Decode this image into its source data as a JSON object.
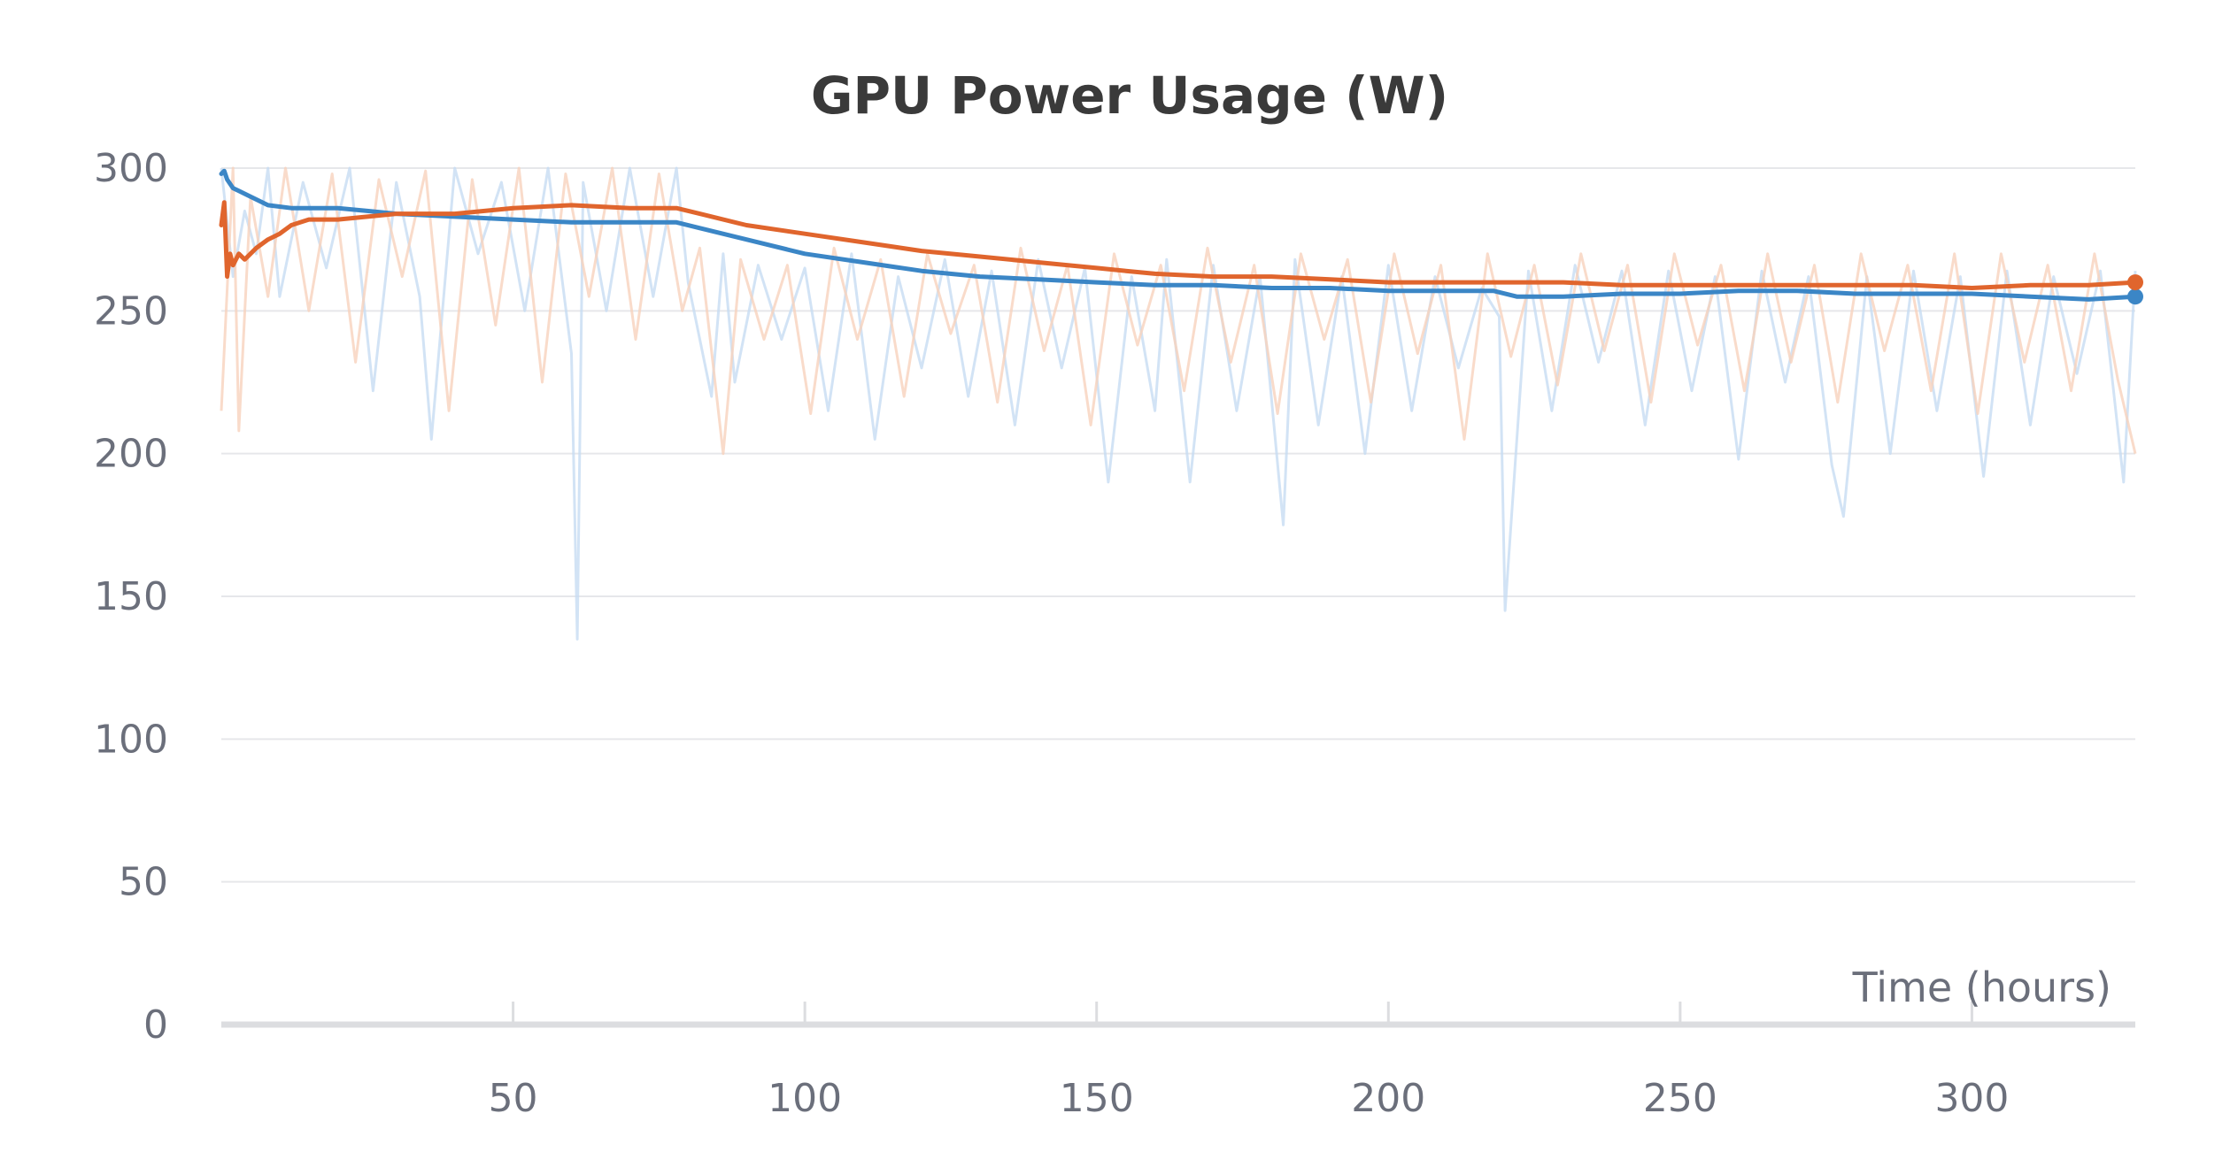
{
  "chart_data": {
    "type": "line",
    "title": "GPU Power Usage (W)",
    "xlabel": "Time (hours)",
    "ylabel": "",
    "xlim": [
      0,
      328
    ],
    "ylim": [
      0,
      300
    ],
    "x_ticks": [
      50,
      100,
      150,
      200,
      250,
      300
    ],
    "y_ticks": [
      0,
      50,
      100,
      150,
      200,
      250,
      300
    ],
    "grid": "horizontal",
    "legend": "none",
    "series": [
      {
        "color": "#3b86c6",
        "raw_color": "#c7dcf3",
        "smoothed": {
          "x": [
            0,
            0.5,
            1,
            2,
            3,
            5,
            8,
            12,
            16,
            20,
            25,
            30,
            40,
            50,
            60,
            70,
            78,
            82,
            90,
            100,
            110,
            120,
            130,
            140,
            150,
            160,
            170,
            180,
            190,
            200,
            210,
            218,
            222,
            230,
            240,
            250,
            260,
            270,
            280,
            290,
            300,
            310,
            320,
            328
          ],
          "y": [
            298,
            299,
            296,
            293,
            292,
            290,
            287,
            286,
            286,
            286,
            285,
            284,
            283,
            282,
            281,
            281,
            281,
            279,
            275,
            270,
            267,
            264,
            262,
            261,
            260,
            259,
            259,
            258,
            258,
            257,
            257,
            257,
            255,
            255,
            256,
            256,
            257,
            257,
            256,
            256,
            256,
            255,
            254,
            255
          ]
        },
        "raw": {
          "x": [
            0,
            2,
            4,
            6,
            8,
            10,
            14,
            18,
            22,
            26,
            30,
            34,
            36,
            40,
            44,
            48,
            52,
            56,
            60,
            61,
            62,
            66,
            70,
            74,
            78,
            80,
            84,
            86,
            88,
            92,
            96,
            100,
            104,
            108,
            112,
            116,
            120,
            124,
            128,
            132,
            136,
            140,
            144,
            148,
            152,
            156,
            160,
            162,
            166,
            170,
            174,
            178,
            182,
            184,
            188,
            192,
            196,
            200,
            204,
            208,
            212,
            216,
            219,
            220,
            224,
            228,
            232,
            236,
            240,
            244,
            248,
            252,
            256,
            260,
            264,
            268,
            272,
            276,
            278,
            282,
            286,
            290,
            294,
            298,
            302,
            306,
            310,
            314,
            318,
            322,
            326,
            328
          ],
          "y": [
            300,
            262,
            285,
            270,
            300,
            255,
            295,
            265,
            300,
            222,
            295,
            255,
            205,
            300,
            270,
            295,
            250,
            300,
            235,
            135,
            295,
            250,
            300,
            255,
            300,
            260,
            220,
            270,
            225,
            266,
            240,
            265,
            215,
            270,
            205,
            262,
            230,
            268,
            220,
            264,
            210,
            268,
            230,
            265,
            190,
            262,
            215,
            268,
            190,
            266,
            215,
            262,
            175,
            268,
            210,
            262,
            200,
            266,
            215,
            262,
            230,
            258,
            248,
            145,
            264,
            215,
            266,
            232,
            264,
            210,
            264,
            222,
            262,
            198,
            264,
            225,
            262,
            196,
            178,
            262,
            200,
            264,
            215,
            262,
            192,
            264,
            210,
            262,
            228,
            264,
            190,
            264
          ]
        }
      },
      {
        "color": "#e0652d",
        "raw_color": "#f8d2bd",
        "smoothed": {
          "x": [
            0,
            0.5,
            1,
            1.5,
            2,
            3,
            4,
            6,
            8,
            10,
            12,
            15,
            20,
            25,
            30,
            40,
            50,
            60,
            70,
            78,
            82,
            90,
            100,
            110,
            120,
            130,
            140,
            150,
            155,
            160,
            170,
            180,
            190,
            200,
            210,
            220,
            230,
            240,
            250,
            260,
            270,
            280,
            290,
            300,
            310,
            320,
            328
          ],
          "y": [
            280,
            288,
            262,
            270,
            266,
            270,
            268,
            272,
            275,
            277,
            280,
            282,
            282,
            283,
            284,
            284,
            286,
            287,
            286,
            286,
            284,
            280,
            277,
            274,
            271,
            269,
            267,
            265,
            264,
            263,
            262,
            262,
            261,
            260,
            260,
            260,
            260,
            259,
            259,
            259,
            259,
            259,
            259,
            258,
            259,
            259,
            260
          ]
        },
        "raw": {
          "x": [
            0,
            2,
            3,
            5,
            8,
            11,
            15,
            19,
            23,
            27,
            31,
            35,
            39,
            43,
            47,
            51,
            55,
            59,
            63,
            67,
            71,
            75,
            79,
            82,
            86,
            89,
            93,
            97,
            101,
            105,
            109,
            113,
            117,
            121,
            125,
            129,
            133,
            137,
            141,
            145,
            149,
            153,
            157,
            161,
            165,
            169,
            173,
            177,
            181,
            185,
            189,
            193,
            197,
            201,
            205,
            209,
            213,
            217,
            221,
            225,
            229,
            233,
            237,
            241,
            245,
            249,
            253,
            257,
            261,
            265,
            269,
            273,
            277,
            281,
            285,
            289,
            293,
            297,
            301,
            305,
            309,
            313,
            317,
            321,
            325,
            328
          ],
          "y": [
            215,
            300,
            208,
            290,
            255,
            300,
            250,
            298,
            232,
            296,
            262,
            299,
            215,
            296,
            245,
            300,
            225,
            298,
            255,
            300,
            240,
            298,
            250,
            272,
            200,
            268,
            240,
            266,
            214,
            272,
            240,
            268,
            220,
            270,
            242,
            266,
            218,
            272,
            236,
            266,
            210,
            270,
            238,
            266,
            222,
            272,
            232,
            266,
            214,
            270,
            240,
            268,
            218,
            270,
            235,
            266,
            205,
            270,
            234,
            266,
            224,
            270,
            236,
            266,
            218,
            270,
            238,
            266,
            222,
            270,
            232,
            266,
            218,
            270,
            236,
            266,
            222,
            270,
            214,
            270,
            232,
            266,
            222,
            270,
            226,
            200
          ]
        }
      }
    ]
  }
}
